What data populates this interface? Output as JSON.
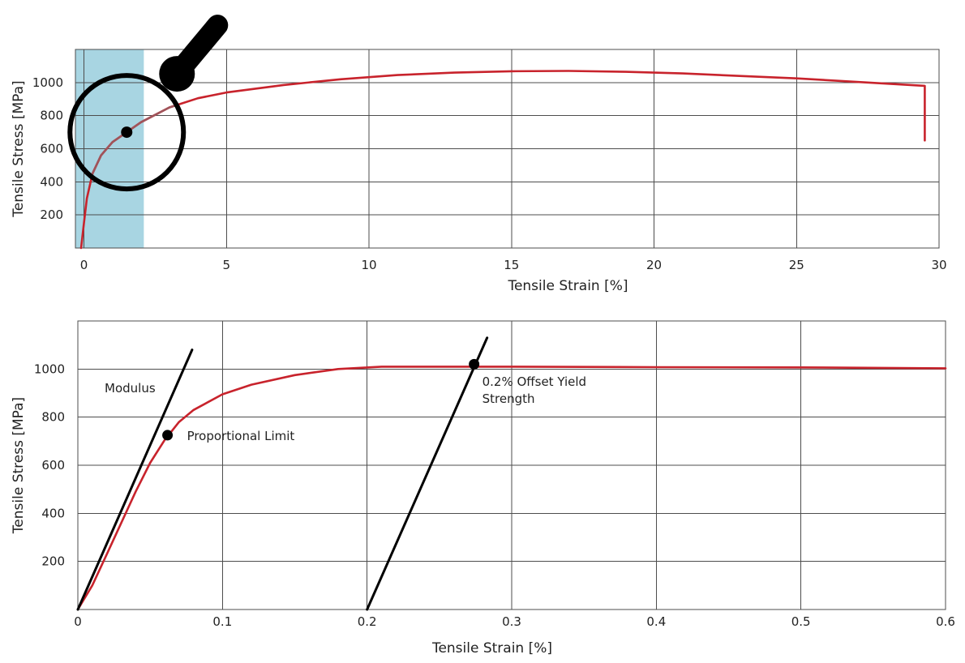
{
  "colors": {
    "curve": "#c8232c",
    "curve_in_lens": "#a0545a",
    "highlight_band": "#a8d5e2",
    "lens": "#000000",
    "grid": "#4d4d4d"
  },
  "chart_data": [
    {
      "type": "line",
      "xlabel": "Tensile Strain [%]",
      "ylabel": "Tensile Stress [MPa]",
      "xlim": [
        -0.3,
        30
      ],
      "ylim": [
        0,
        1200
      ],
      "x_ticks": [
        0,
        5,
        10,
        15,
        20,
        25,
        30
      ],
      "y_ticks": [
        200,
        400,
        600,
        800,
        1000
      ],
      "grid": true,
      "highlight_band": {
        "x_range": [
          -0.3,
          2.1
        ],
        "description": "zoomed region"
      },
      "magnifier": {
        "icon": "magnifying-glass-icon",
        "center": [
          1.5,
          700
        ]
      },
      "marker": {
        "x": 1.5,
        "y": 700
      },
      "series": [
        {
          "x": [
            -0.1,
            0,
            0.1,
            0.3,
            0.6,
            1.0,
            1.5,
            2.0,
            3.0,
            4.0,
            5.0,
            7.0,
            9.0,
            11.0,
            13.0,
            15.0,
            17.0,
            19.0,
            21.0,
            23.0,
            25.0,
            27.0,
            29.5,
            29.5
          ],
          "y": [
            0,
            150,
            300,
            450,
            560,
            640,
            700,
            760,
            850,
            905,
            940,
            985,
            1020,
            1045,
            1060,
            1068,
            1070,
            1065,
            1055,
            1040,
            1025,
            1005,
            980,
            650
          ]
        }
      ]
    },
    {
      "type": "line",
      "xlabel": "Tensile Strain [%]",
      "ylabel": "Tensile Stress [MPa]",
      "xlim": [
        0,
        0.6
      ],
      "ylim": [
        0,
        1200
      ],
      "x_ticks": [
        0,
        0.1,
        0.2,
        0.3,
        0.4,
        0.5,
        0.6
      ],
      "y_ticks": [
        200,
        400,
        600,
        800,
        1000
      ],
      "grid": true,
      "series": [
        {
          "x": [
            0,
            0.01,
            0.02,
            0.03,
            0.04,
            0.05,
            0.06,
            0.07,
            0.08,
            0.1,
            0.12,
            0.15,
            0.18,
            0.21,
            0.25,
            0.3,
            0.4,
            0.5,
            0.6
          ],
          "y": [
            0,
            100,
            230,
            360,
            490,
            610,
            705,
            780,
            830,
            895,
            935,
            975,
            1000,
            1010,
            1010,
            1010,
            1008,
            1007,
            1003
          ]
        }
      ],
      "lines": [
        {
          "name": "modulus",
          "from": [
            0,
            0
          ],
          "to": [
            0.079,
            1080
          ]
        },
        {
          "name": "offset",
          "from": [
            0.2,
            0
          ],
          "to": [
            0.283,
            1130
          ]
        }
      ],
      "points": [
        {
          "name": "proportional-limit",
          "x": 0.062,
          "y": 725
        },
        {
          "name": "offset-yield",
          "x": 0.274,
          "y": 1020
        }
      ],
      "annotations": {
        "modulus": "Modulus",
        "proportional_limit": "Proportional Limit",
        "offset_yield_line1": "0.2% Offset Yield",
        "offset_yield_line2": "Strength"
      }
    }
  ]
}
